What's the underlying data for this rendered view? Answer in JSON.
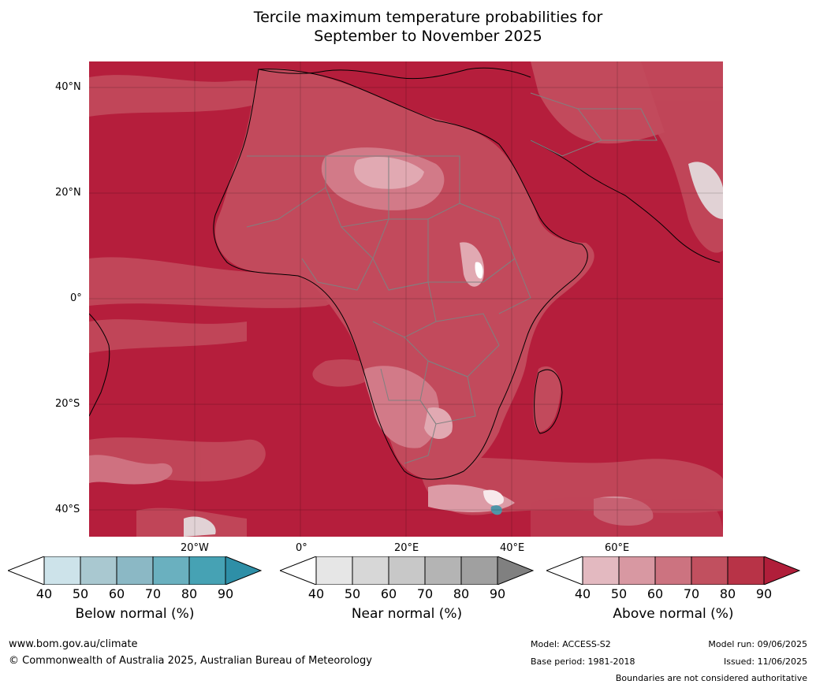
{
  "title_line1": "Tercile maximum temperature probabilities for",
  "title_line2": "September to November 2025",
  "lat_labels": [
    "40°N",
    "20°N",
    "0°",
    "20°S",
    "40°S"
  ],
  "lon_labels": [
    "20°W",
    "0°",
    "20°E",
    "40°E",
    "60°E"
  ],
  "colorbars": [
    {
      "title": "Below normal (%)",
      "ticks": [
        "40",
        "50",
        "60",
        "70",
        "80",
        "90"
      ],
      "colors": [
        "#ffffff",
        "#cde3ea",
        "#a9c8d0",
        "#8bb8c5",
        "#6ab0bf",
        "#46a2b4",
        "#2e8fa7"
      ]
    },
    {
      "title": "Near normal (%)",
      "ticks": [
        "40",
        "50",
        "60",
        "70",
        "80",
        "90"
      ],
      "colors": [
        "#ffffff",
        "#e6e6e6",
        "#d7d7d7",
        "#c8c8c8",
        "#b4b4b4",
        "#a0a0a0",
        "#808080"
      ]
    },
    {
      "title": "Above normal (%)",
      "ticks": [
        "40",
        "50",
        "60",
        "70",
        "80",
        "90"
      ],
      "colors": [
        "#ffffff",
        "#e3b9c0",
        "#d898a2",
        "#cc7380",
        "#c1505f",
        "#b83347",
        "#b01e3a"
      ]
    }
  ],
  "footer": {
    "website": "www.bom.gov.au/climate",
    "copyright": "© Commonwealth of Australia 2025, Australian Bureau of Meteorology",
    "model": "Model: ACCESS-S2",
    "base_period": "Base period: 1981-2018",
    "model_run": "Model run: 09/06/2025",
    "issued": "Issued: 11/06/2025",
    "disclaimer": "Boundaries are not considered authoritative"
  },
  "map_colors": {
    "ocean_dominant": "#b51e3c",
    "land_mid": "#c24a5c",
    "land_light": "#d27a88",
    "land_pale": "#e1a9b2",
    "near_normal_patch": "#e6e6e6",
    "below_normal_patch": "#46a2b4"
  }
}
